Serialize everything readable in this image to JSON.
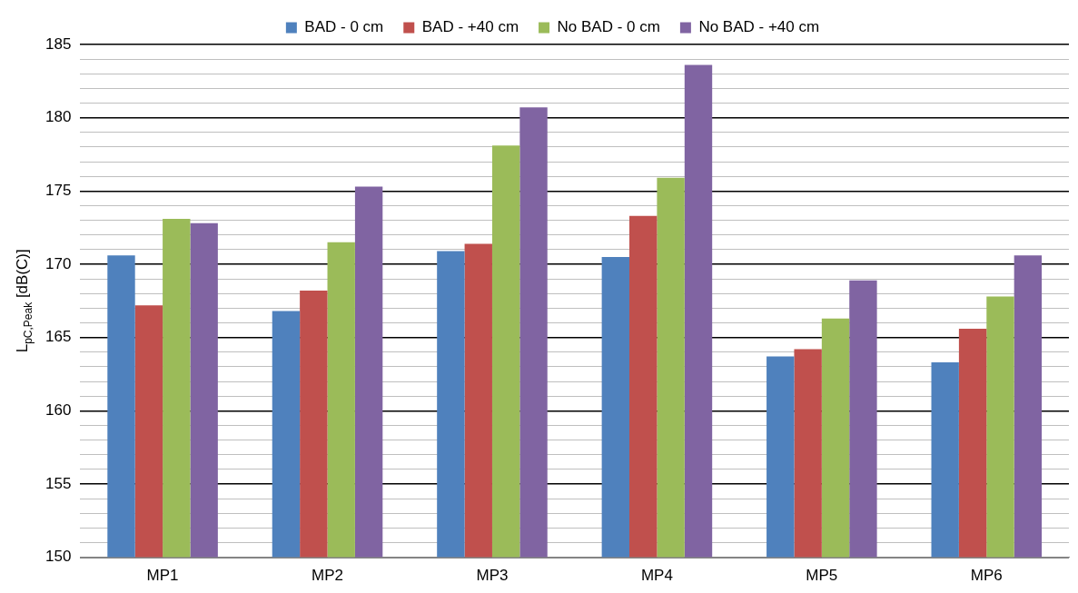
{
  "chart_data": {
    "type": "bar",
    "ylabel": "L$_{pC,Peak}$ [dB(C)]",
    "categories": [
      "MP1",
      "MP2",
      "MP3",
      "MP4",
      "MP5",
      "MP6"
    ],
    "series": [
      {
        "name": "BAD - 0 cm",
        "color": "#4f81bd",
        "values": [
          170.6,
          166.8,
          170.9,
          170.5,
          163.7,
          163.3
        ]
      },
      {
        "name": "BAD - +40 cm",
        "color": "#c0504d",
        "values": [
          167.2,
          168.2,
          171.4,
          173.3,
          164.2,
          165.6
        ]
      },
      {
        "name": "No BAD - 0 cm",
        "color": "#9bbb59",
        "values": [
          173.1,
          171.5,
          178.1,
          175.9,
          166.3,
          167.8
        ]
      },
      {
        "name": "No BAD - +40 cm",
        "color": "#8064a2",
        "values": [
          172.8,
          175.3,
          180.7,
          183.6,
          168.9,
          170.6
        ]
      }
    ],
    "ylim": [
      150,
      185
    ],
    "yticks": [
      150,
      {
        "value": 151,
        "label": null
      },
      {
        "value": 152,
        "label": null
      },
      {
        "value": 153,
        "label": null
      },
      {
        "value": 154,
        "label": null
      },
      155,
      {
        "value": 156,
        "label": null
      },
      {
        "value": 157,
        "label": null
      },
      {
        "value": 158,
        "label": null
      },
      {
        "value": 159,
        "label": null
      },
      160,
      {
        "value": 161,
        "label": null
      },
      {
        "value": 162,
        "label": null
      },
      {
        "value": 163,
        "label": null
      },
      {
        "value": 164,
        "label": null
      },
      165,
      {
        "value": 166,
        "label": null
      },
      {
        "value": 167,
        "label": null
      },
      {
        "value": 168,
        "label": null
      },
      {
        "value": 169,
        "label": null
      },
      170,
      {
        "value": 171,
        "label": null
      },
      {
        "value": 172,
        "label": null
      },
      {
        "value": 173,
        "label": null
      },
      {
        "value": 174,
        "label": null
      },
      175,
      {
        "value": 176,
        "label": null
      },
      {
        "value": 177,
        "label": null
      },
      {
        "value": 178,
        "label": null
      },
      {
        "value": 179,
        "label": null
      },
      180,
      {
        "value": 181,
        "label": null
      },
      {
        "value": 182,
        "label": null
      },
      {
        "value": 183,
        "label": null
      },
      {
        "value": 184,
        "label": null
      },
      185
    ],
    "grid": "y",
    "legend": "top"
  }
}
